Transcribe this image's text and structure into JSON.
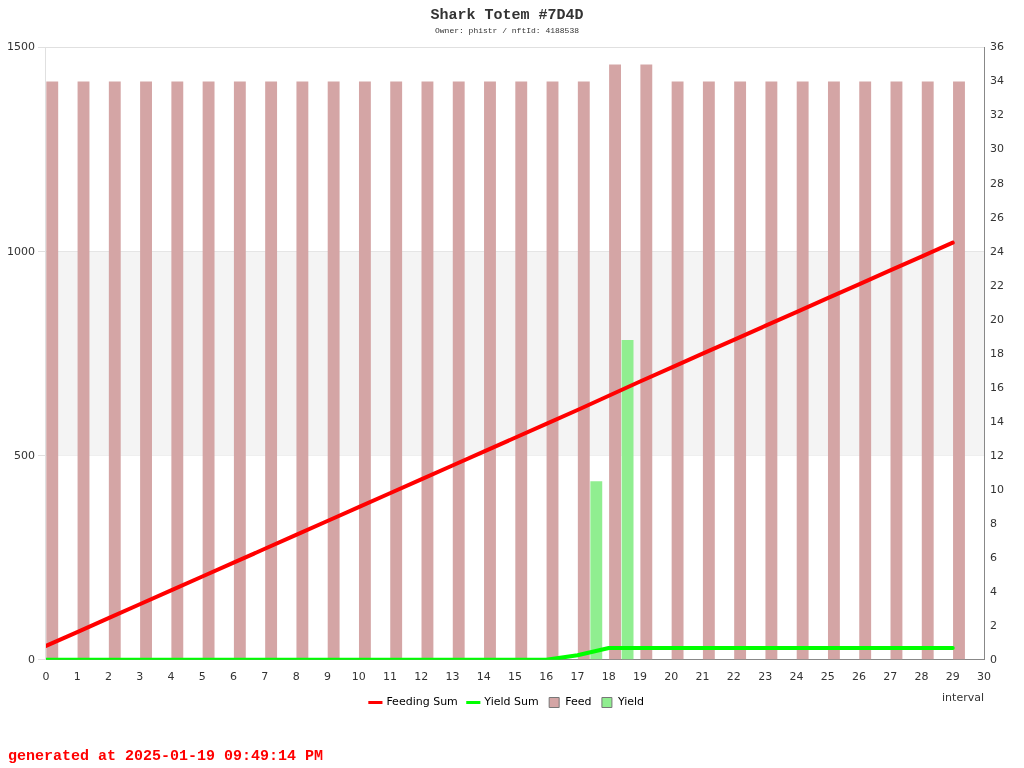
{
  "chart_data": {
    "type": "bar",
    "title": "Shark Totem #7D4D",
    "subtitle": "Owner: phistr / nftId: 4188538",
    "xlabel": "interval",
    "annotations": [
      "generated at 2025-01-19 09:49:14 PM"
    ],
    "x": [
      0,
      1,
      2,
      3,
      4,
      5,
      6,
      7,
      8,
      9,
      10,
      11,
      12,
      13,
      14,
      15,
      16,
      17,
      18,
      19,
      20,
      21,
      22,
      23,
      24,
      25,
      26,
      27,
      28,
      29
    ],
    "xlim": [
      0,
      30
    ],
    "xticks": [
      0,
      1,
      2,
      3,
      4,
      5,
      6,
      7,
      8,
      9,
      10,
      11,
      12,
      13,
      14,
      15,
      16,
      17,
      18,
      19,
      20,
      21,
      22,
      23,
      24,
      25,
      26,
      27,
      28,
      29,
      30
    ],
    "ylim": [
      0,
      1500
    ],
    "yticks": [
      0,
      500,
      1000,
      1500
    ],
    "y2lim": [
      0,
      36
    ],
    "y2ticks": [
      0,
      2,
      4,
      6,
      8,
      10,
      12,
      14,
      16,
      18,
      20,
      22,
      24,
      26,
      28,
      30,
      32,
      34,
      36
    ],
    "grid": "y",
    "legend": "bottom",
    "bands": [
      {
        "axis": "y",
        "from": 500,
        "to": 1000,
        "color": "#f4f4f4"
      }
    ],
    "series": [
      {
        "name": "Feeding Sum",
        "type": "line",
        "color": "#ff0000",
        "values": [
          34,
          68,
          102,
          136,
          170,
          204,
          238,
          272,
          306,
          340,
          374,
          408,
          442,
          476,
          510,
          544,
          578,
          612,
          647,
          682,
          716,
          750,
          784,
          818,
          852,
          886,
          920,
          954,
          988,
          1022
        ]
      },
      {
        "name": "Yield Sum",
        "type": "line",
        "color": "#00ff00",
        "values": [
          0,
          0,
          0,
          0,
          0,
          0,
          0,
          0,
          0,
          0,
          0,
          0,
          0,
          0,
          0,
          0,
          0,
          11,
          29,
          29,
          29,
          29,
          29,
          29,
          29,
          29,
          29,
          29,
          29,
          29
        ]
      },
      {
        "name": "Feed",
        "axis": "y2",
        "color": "#d4a5a5",
        "x": [
          0.2,
          1.2,
          2.2,
          3.2,
          4.2,
          5.2,
          6.2,
          7.2,
          8.2,
          9.2,
          10.2,
          11.2,
          12.2,
          13.2,
          14.2,
          15.2,
          16.2,
          17.2,
          18.2,
          19.2,
          20.2,
          21.2,
          22.2,
          23.2,
          24.2,
          25.2,
          26.2,
          27.2,
          28.2,
          29.2
        ],
        "values": [
          34,
          34,
          34,
          34,
          34,
          34,
          34,
          34,
          34,
          34,
          34,
          34,
          34,
          34,
          34,
          34,
          34,
          34,
          35,
          35,
          34,
          34,
          34,
          34,
          34,
          34,
          34,
          34,
          34,
          34
        ]
      },
      {
        "name": "Yield",
        "axis": "y2",
        "color": "#90ee90",
        "x": [
          0.6,
          1.6,
          2.6,
          3.6,
          4.6,
          5.6,
          6.6,
          7.6,
          8.6,
          9.6,
          10.6,
          11.6,
          12.6,
          13.6,
          14.6,
          15.6,
          16.6,
          17.6,
          18.6,
          19.6,
          20.6,
          21.6,
          22.6,
          23.6,
          24.6,
          25.6,
          26.6,
          27.6,
          28.6,
          29.6
        ],
        "values": [
          0,
          0,
          0,
          0,
          0,
          0,
          0,
          0,
          0,
          0,
          0,
          0,
          0,
          0,
          0,
          0,
          0,
          10.5,
          18.8,
          0,
          0,
          0,
          0,
          0,
          0,
          0,
          0,
          0,
          0,
          0
        ]
      }
    ]
  }
}
